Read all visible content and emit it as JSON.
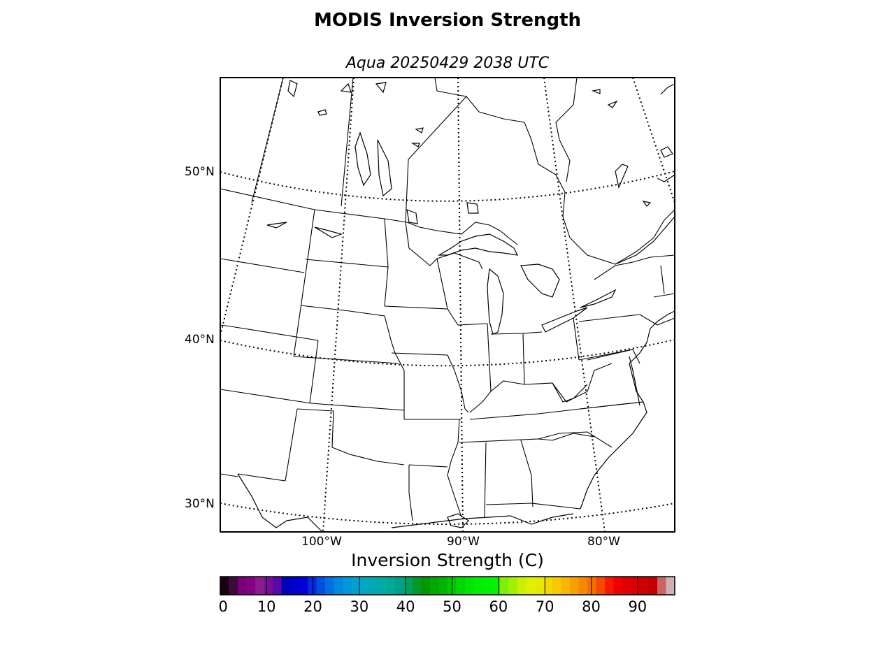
{
  "title": "MODIS Inversion Strength",
  "subtitle": "Aqua 20250429 2038 UTC",
  "map": {
    "projection": "lambert-conformal",
    "region": "central and eastern United States, southern Canada",
    "graticule": "dotted",
    "lat_labels": [
      {
        "value": 50,
        "text": "50°N"
      },
      {
        "value": 40,
        "text": "40°N"
      },
      {
        "value": 30,
        "text": "30°N"
      }
    ],
    "lon_labels": [
      {
        "value": -100,
        "text": "100°W"
      },
      {
        "value": -90,
        "text": "90°W"
      },
      {
        "value": -80,
        "text": "80°W"
      }
    ],
    "background": "#ffffff",
    "line_color": "#000000"
  },
  "colorbar": {
    "title": "Inversion Strength (C)",
    "min": 0,
    "max": 98,
    "ticks": [
      {
        "value": 0,
        "text": "0"
      },
      {
        "value": 10,
        "text": "10"
      },
      {
        "value": 20,
        "text": "20"
      },
      {
        "value": 30,
        "text": "30"
      },
      {
        "value": 40,
        "text": "40"
      },
      {
        "value": 50,
        "text": "50"
      },
      {
        "value": 60,
        "text": "60"
      },
      {
        "value": 70,
        "text": "70"
      },
      {
        "value": 80,
        "text": "80"
      },
      {
        "value": 90,
        "text": "90"
      }
    ],
    "colors": [
      "#1a0014",
      "#3c0a3c",
      "#780078",
      "#860086",
      "#8c1c8c",
      "#7c0a9e",
      "#5a08a8",
      "#0000b8",
      "#0000c8",
      "#0000d8",
      "#0a28e0",
      "#0050e0",
      "#0070e0",
      "#0088e0",
      "#0096d8",
      "#00a0d0",
      "#00a8c0",
      "#00a8b4",
      "#00aaa6",
      "#00a898",
      "#00a088",
      "#00a060",
      "#009a28",
      "#009600",
      "#00a800",
      "#00b400",
      "#00c800",
      "#00d800",
      "#00e400",
      "#00ec00",
      "#00f000",
      "#00f400",
      "#7cf000",
      "#a0f000",
      "#c8f000",
      "#e0f000",
      "#e8e800",
      "#f0d800",
      "#f8c800",
      "#f8b800",
      "#f8a000",
      "#f88800",
      "#f07000",
      "#f84800",
      "#f81800",
      "#f00000",
      "#e40000",
      "#d80000",
      "#cc0000",
      "#c00000",
      "#c86464",
      "#d0b0b0"
    ]
  }
}
